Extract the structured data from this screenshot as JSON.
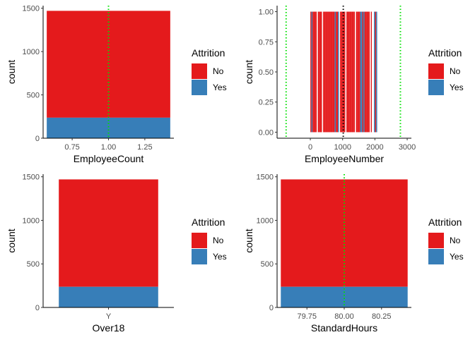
{
  "legend": {
    "title": "Attrition",
    "items": [
      {
        "label": "No",
        "color": "#E41A1C"
      },
      {
        "label": "Yes",
        "color": "#377EB8"
      }
    ]
  },
  "chart_data": [
    {
      "type": "bar",
      "variant": "stacked-histogram",
      "xlabel": "EmployeeCount",
      "ylabel": "count",
      "xlim": [
        0.55,
        1.45
      ],
      "ylim": [
        0,
        1530
      ],
      "xticks": [
        0.75,
        1.0,
        1.25
      ],
      "xtick_labels": [
        "0.75",
        "1.00",
        "1.25"
      ],
      "yticks": [
        0,
        500,
        1000,
        1500
      ],
      "ytick_labels": [
        "0",
        "500",
        "1000",
        "1500"
      ],
      "bars": [
        {
          "x0": 0.575,
          "x1": 1.425,
          "yes": 237,
          "total": 1470
        }
      ],
      "vlines": [
        {
          "x": 1.0,
          "color": "#00E000",
          "style": "dotted"
        }
      ],
      "legend": "right",
      "grid": false
    },
    {
      "type": "bar",
      "variant": "stacked-histogram",
      "xlabel": "EmployeeNumber",
      "ylabel": "count",
      "xlim": [
        -1030,
        3130
      ],
      "ylim": [
        -0.05,
        1.05
      ],
      "xticks": [
        0,
        1000,
        2000,
        3000
      ],
      "xtick_labels": [
        "0",
        "1000",
        "2000",
        "3000"
      ],
      "yticks": [
        0,
        0.25,
        0.5,
        0.75,
        1.0
      ],
      "ytick_labels": [
        "0.00",
        "0.25",
        "0.50",
        "0.75",
        "1.00"
      ],
      "x_range": [
        1,
        2068
      ],
      "bar_height": 1,
      "vlines": [
        {
          "x": -750,
          "color": "#00E000",
          "style": "dotted"
        },
        {
          "x": 1020,
          "color": "#000000",
          "style": "dotted"
        },
        {
          "x": 2790,
          "color": "#00E000",
          "style": "dotted"
        }
      ],
      "legend": "right",
      "grid": false
    },
    {
      "type": "bar",
      "variant": "stacked",
      "xlabel": "Over18",
      "ylabel": "count",
      "categories": [
        "Y"
      ],
      "ylim": [
        0,
        1530
      ],
      "yticks": [
        0,
        500,
        1000,
        1500
      ],
      "ytick_labels": [
        "0",
        "500",
        "1000",
        "1500"
      ],
      "series": [
        {
          "name": "No",
          "values": [
            1233
          ]
        },
        {
          "name": "Yes",
          "values": [
            237
          ]
        }
      ],
      "legend": "right",
      "grid": false
    },
    {
      "type": "bar",
      "variant": "stacked-histogram",
      "xlabel": "StandardHours",
      "ylabel": "count",
      "xlim": [
        79.55,
        80.45
      ],
      "ylim": [
        0,
        1530
      ],
      "xticks": [
        79.75,
        80.0,
        80.25
      ],
      "xtick_labels": [
        "79.75",
        "80.00",
        "80.25"
      ],
      "yticks": [
        0,
        500,
        1000,
        1500
      ],
      "ytick_labels": [
        "0",
        "500",
        "1000",
        "1500"
      ],
      "bars": [
        {
          "x0": 79.575,
          "x1": 80.425,
          "yes": 237,
          "total": 1470
        }
      ],
      "vlines": [
        {
          "x": 80.0,
          "color": "#00E000",
          "style": "dotted"
        }
      ],
      "legend": "right",
      "grid": false
    }
  ]
}
